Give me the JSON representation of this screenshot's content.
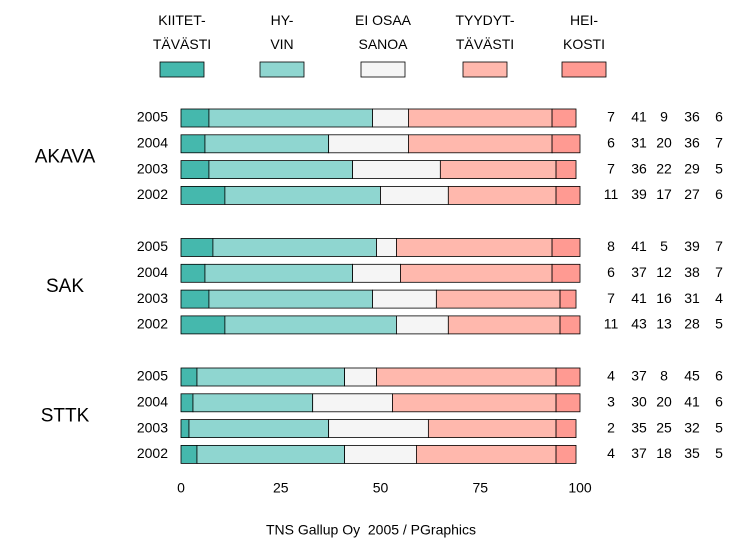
{
  "chart_data": {
    "type": "stacked-bar-horizontal",
    "groups": [
      {
        "name": "AKAVA",
        "categories": [
          "2005",
          "2004",
          "2003",
          "2002"
        ]
      },
      {
        "name": "SAK",
        "categories": [
          "2005",
          "2004",
          "2003",
          "2002"
        ]
      },
      {
        "name": "STTK",
        "categories": [
          "2005",
          "2004",
          "2003",
          "2002"
        ]
      }
    ],
    "series": [
      {
        "name": "KIITET-\nTÄVÄSTI",
        "color": "#45b8ad",
        "values": [
          7,
          6,
          7,
          11,
          8,
          6,
          7,
          11,
          4,
          3,
          2,
          4
        ]
      },
      {
        "name": "HY-\nVIN",
        "color": "#8fd6d0",
        "values": [
          41,
          31,
          36,
          39,
          41,
          37,
          41,
          43,
          37,
          30,
          35,
          37
        ]
      },
      {
        "name": "EI OSAA\nSANOA",
        "color": "#f5f5f5",
        "values": [
          9,
          20,
          22,
          17,
          5,
          12,
          16,
          13,
          8,
          20,
          25,
          18
        ]
      },
      {
        "name": "TYYDYT-\nTÄVÄSTI",
        "color": "#ffb8ad",
        "values": [
          36,
          36,
          29,
          27,
          39,
          38,
          31,
          28,
          45,
          41,
          32,
          35
        ]
      },
      {
        "name": "HEI-\nKOSTI",
        "color": "#ff9a92",
        "values": [
          6,
          7,
          5,
          6,
          7,
          7,
          4,
          5,
          6,
          6,
          5,
          5
        ]
      }
    ],
    "xlim": [
      0,
      100
    ],
    "xticks": [
      0,
      25,
      50,
      75,
      100
    ],
    "source": "TNS Gallup Oy  2005 / PGraphics"
  }
}
